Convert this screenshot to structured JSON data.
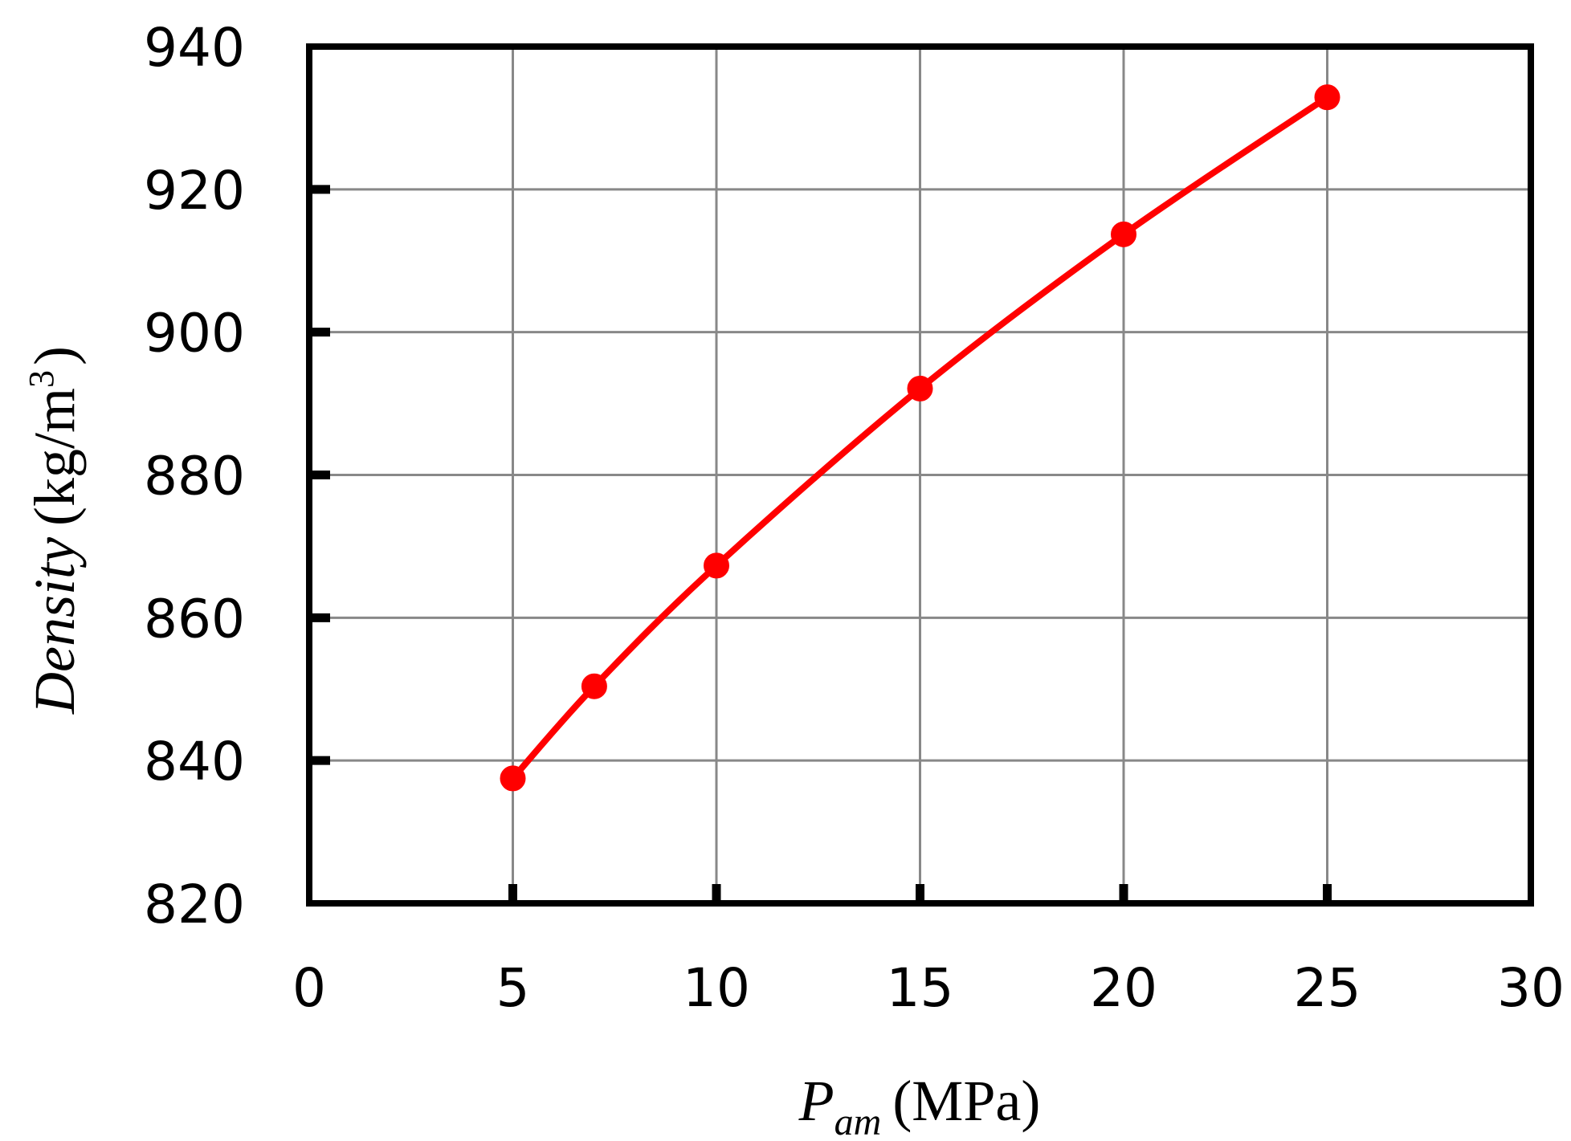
{
  "chart_data": {
    "type": "line",
    "title": "",
    "xlabel": {
      "symbol": "P",
      "subscript": "am",
      "unit": "(MPa)"
    },
    "ylabel": {
      "quantity": "Density",
      "unit_prefix": "(kg/m",
      "unit_power": "3",
      "unit_suffix": ")"
    },
    "xlim": [
      0,
      30
    ],
    "ylim": [
      820,
      940
    ],
    "xticks": [
      "0",
      "5",
      "10",
      "15",
      "20",
      "25",
      "30"
    ],
    "yticks": [
      "820",
      "840",
      "860",
      "880",
      "900",
      "920",
      "940"
    ],
    "grid": true,
    "legend": "none",
    "series": [
      {
        "color": "#ff0000",
        "marker": "circle",
        "x": [
          5,
          7,
          10,
          15,
          20,
          25
        ],
        "y": [
          837.5,
          850.4,
          867.3,
          892.1,
          913.7,
          932.9
        ]
      }
    ]
  }
}
